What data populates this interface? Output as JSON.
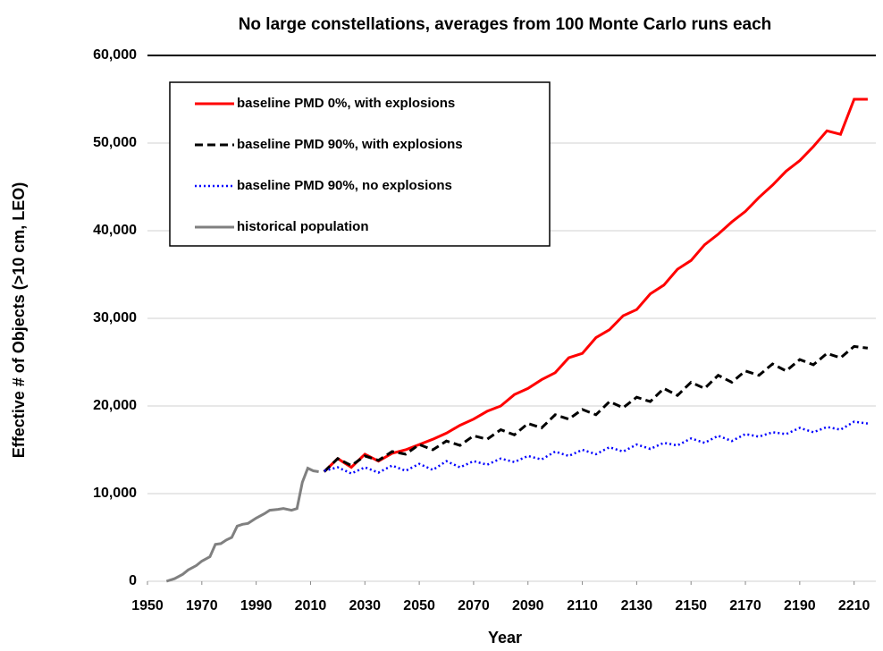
{
  "chart_data": {
    "type": "line",
    "title": "No large constellations, averages from 100 Monte Carlo runs each",
    "xlabel": "Year",
    "ylabel": "Effective # of Objects (>10 cm, LEO)",
    "xlim": [
      1950,
      2218
    ],
    "ylim": [
      0,
      60000
    ],
    "xticks": [
      1950,
      1970,
      1990,
      2010,
      2030,
      2050,
      2070,
      2090,
      2110,
      2130,
      2150,
      2170,
      2190,
      2210
    ],
    "yticks": [
      0,
      {
        "value": 10000,
        "label": "10,000"
      },
      {
        "value": 20000,
        "label": "20,000"
      },
      {
        "value": 30000,
        "label": "30,000"
      },
      {
        "value": 40000,
        "label": "40,000"
      },
      {
        "value": 50000,
        "label": "50,000"
      },
      {
        "value": 60000,
        "label": "60,000"
      }
    ],
    "grid": true,
    "legend": "upper left",
    "series": [
      {
        "name": "baseline PMD 0%, with explosions",
        "color": "#ff0000",
        "style": "solid",
        "x": [
          2015,
          2020,
          2025,
          2030,
          2035,
          2040,
          2045,
          2050,
          2055,
          2060,
          2065,
          2070,
          2075,
          2080,
          2085,
          2090,
          2095,
          2100,
          2105,
          2110,
          2115,
          2120,
          2125,
          2130,
          2135,
          2140,
          2145,
          2150,
          2155,
          2160,
          2165,
          2170,
          2175,
          2180,
          2185,
          2190,
          2195,
          2200,
          2205,
          2210,
          2215
        ],
        "values": [
          12500,
          14000,
          13000,
          14500,
          13700,
          14600,
          15000,
          15600,
          16200,
          16900,
          17800,
          18500,
          19400,
          20000,
          21300,
          22000,
          23000,
          23800,
          25500,
          26000,
          27800,
          28700,
          30300,
          31000,
          32800,
          33800,
          35600,
          36600,
          38400,
          39600,
          41000,
          42200,
          43800,
          45200,
          46800,
          48000,
          49600,
          51400,
          51000,
          55000,
          55000
        ]
      },
      {
        "name": "baseline PMD 90%, with explosions",
        "color": "#000000",
        "style": "dashed",
        "x": [
          2015,
          2020,
          2025,
          2030,
          2035,
          2040,
          2045,
          2050,
          2055,
          2060,
          2065,
          2070,
          2075,
          2080,
          2085,
          2090,
          2095,
          2100,
          2105,
          2110,
          2115,
          2120,
          2125,
          2130,
          2135,
          2140,
          2145,
          2150,
          2155,
          2160,
          2165,
          2170,
          2175,
          2180,
          2185,
          2190,
          2195,
          2200,
          2205,
          2210,
          2215
        ],
        "values": [
          12500,
          14000,
          13200,
          14300,
          13800,
          14800,
          14500,
          15600,
          15000,
          16000,
          15500,
          16600,
          16200,
          17300,
          16700,
          18000,
          17500,
          19000,
          18500,
          19600,
          19000,
          20500,
          19800,
          21000,
          20500,
          22000,
          21200,
          22700,
          22000,
          23500,
          22700,
          24000,
          23500,
          24800,
          24000,
          25300,
          24700,
          26000,
          25500,
          26800,
          26600
        ]
      },
      {
        "name": "baseline PMD 90%, no explosions",
        "color": "#0000ff",
        "style": "dotted",
        "x": [
          2015,
          2020,
          2025,
          2030,
          2035,
          2040,
          2045,
          2050,
          2055,
          2060,
          2065,
          2070,
          2075,
          2080,
          2085,
          2090,
          2095,
          2100,
          2105,
          2110,
          2115,
          2120,
          2125,
          2130,
          2135,
          2140,
          2145,
          2150,
          2155,
          2160,
          2165,
          2170,
          2175,
          2180,
          2185,
          2190,
          2195,
          2200,
          2205,
          2210,
          2215
        ],
        "values": [
          12600,
          13000,
          12300,
          13000,
          12400,
          13200,
          12600,
          13400,
          12700,
          13700,
          13000,
          13700,
          13300,
          14000,
          13600,
          14300,
          13900,
          14800,
          14300,
          15000,
          14500,
          15300,
          14800,
          15600,
          15100,
          15800,
          15500,
          16300,
          15800,
          16600,
          16000,
          16800,
          16500,
          17000,
          16800,
          17500,
          17000,
          17600,
          17300,
          18200,
          18000
        ]
      },
      {
        "name": "historical population",
        "color": "#808080",
        "style": "solid",
        "x": [
          1957,
          1960,
          1963,
          1965,
          1968,
          1970,
          1973,
          1975,
          1977,
          1979,
          1981,
          1983,
          1985,
          1987,
          1990,
          1993,
          1995,
          1998,
          2000,
          2003,
          2005,
          2007,
          2009,
          2011,
          2013
        ],
        "values": [
          0,
          300,
          800,
          1300,
          1800,
          2300,
          2800,
          4200,
          4300,
          4700,
          5000,
          6300,
          6500,
          6600,
          7200,
          7700,
          8100,
          8200,
          8300,
          8100,
          8300,
          11300,
          12900,
          12600,
          12500
        ]
      }
    ]
  }
}
